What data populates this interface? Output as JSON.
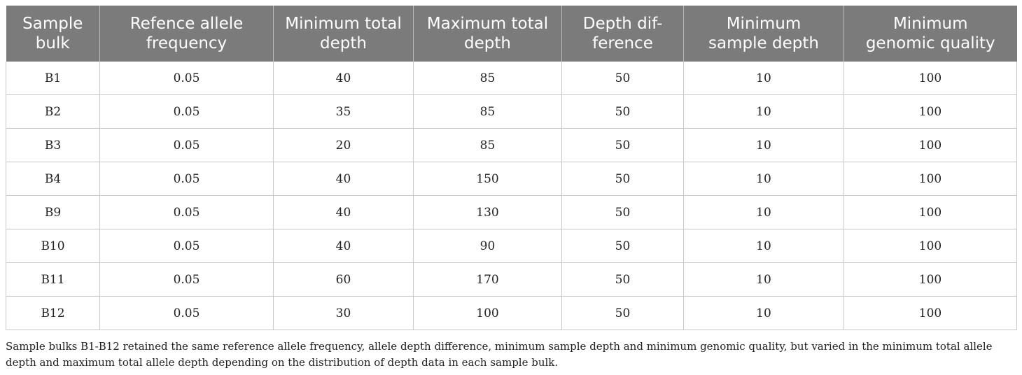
{
  "table": {
    "headers": [
      [
        "Sample",
        "bulk"
      ],
      [
        "Refence allele",
        "frequency"
      ],
      [
        "Minimum total",
        "depth"
      ],
      [
        "Maximum total",
        "depth"
      ],
      [
        "Depth dif-",
        "ference"
      ],
      [
        "Minimum",
        "sample depth"
      ],
      [
        "Minimum",
        "genomic quality"
      ]
    ],
    "rows": [
      [
        "B1",
        "0.05",
        "40",
        "85",
        "50",
        "10",
        "100"
      ],
      [
        "B2",
        "0.05",
        "35",
        "85",
        "50",
        "10",
        "100"
      ],
      [
        "B3",
        "0.05",
        "20",
        "85",
        "50",
        "10",
        "100"
      ],
      [
        "B4",
        "0.05",
        "40",
        "150",
        "50",
        "10",
        "100"
      ],
      [
        "B9",
        "0.05",
        "40",
        "130",
        "50",
        "10",
        "100"
      ],
      [
        "B10",
        "0.05",
        "40",
        "90",
        "50",
        "10",
        "100"
      ],
      [
        "B11",
        "0.05",
        "60",
        "170",
        "50",
        "10",
        "100"
      ],
      [
        "B12",
        "0.05",
        "30",
        "100",
        "50",
        "10",
        "100"
      ]
    ]
  },
  "footnote": "Sample bulks B1-B12 retained the same reference allele frequency, allele depth difference, minimum sample depth and minimum genomic quality, but varied in the minimum total allele depth and maximum total allele depth depending on the distribution of depth data in each sample bulk."
}
